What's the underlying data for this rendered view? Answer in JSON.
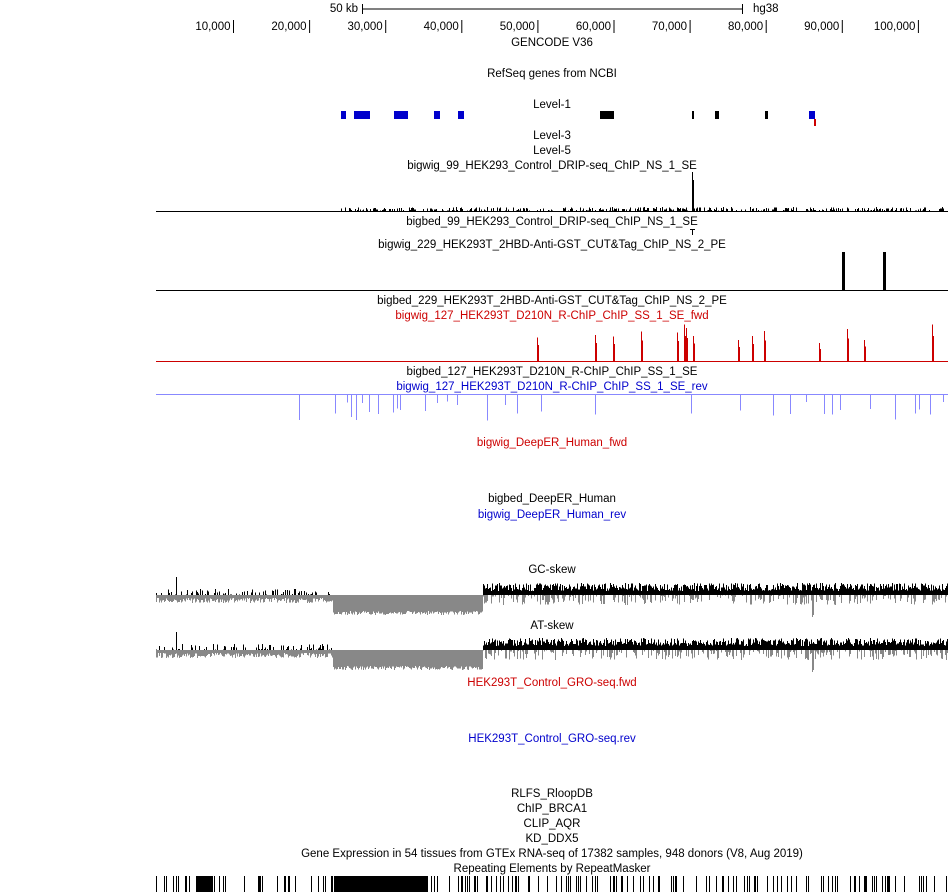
{
  "ruler": {
    "scale": "50 kb",
    "assembly": "hg38",
    "ticks": [
      "10,000",
      "20,000",
      "30,000",
      "40,000",
      "50,000",
      "60,000",
      "70,000",
      "80,000",
      "90,000",
      "100,000"
    ]
  },
  "tracks": [
    {
      "label": "GENCODE V36"
    },
    {
      "label": "RefSeq genes from NCBI"
    },
    {
      "label": "Level-1"
    },
    {
      "label": "Level-3"
    },
    {
      "label": "Level-5"
    },
    {
      "label": "bigwig_99_HEK293_Control_DRIP-seq_ChIP_NS_1_SE"
    },
    {
      "label": "bigbed_99_HEK293_Control_DRIP-seq_ChIP_NS_1_SE"
    },
    {
      "label": "bigwig_229_HEK293T_2HBD-Anti-GST_CUT&Tag_ChIP_NS_2_PE"
    },
    {
      "label": "bigbed_229_HEK293T_2HBD-Anti-GST_CUT&Tag_ChIP_NS_2_PE"
    },
    {
      "label": "bigwig_127_HEK293T_D210N_R-ChIP_ChIP_SS_1_SE_fwd"
    },
    {
      "label": "bigbed_127_HEK293T_D210N_R-ChIP_ChIP_SS_1_SE"
    },
    {
      "label": "bigwig_127_HEK293T_D210N_R-ChIP_ChIP_SS_1_SE_rev"
    },
    {
      "label": "bigwig_DeepER_Human_fwd"
    },
    {
      "label": "bigbed_DeepER_Human"
    },
    {
      "label": "bigwig_DeepER_Human_rev"
    },
    {
      "label": "GC-skew"
    },
    {
      "label": "AT-skew"
    },
    {
      "label": "HEK293T_Control_GRO-seq.fwd"
    },
    {
      "label": "HEK293T_Control_GRO-seq.rev"
    },
    {
      "label": "RLFS_RloopDB"
    },
    {
      "label": "ChIP_BRCA1"
    },
    {
      "label": "CLIP_AQR"
    },
    {
      "label": "KD_DDX5"
    },
    {
      "label": "Gene Expression in 54 tissues from GTEx RNA-seq of 17382 samples, 948 donors (V8, Aug 2019)"
    },
    {
      "label": "Repeating Elements by RepeatMasker"
    }
  ]
}
